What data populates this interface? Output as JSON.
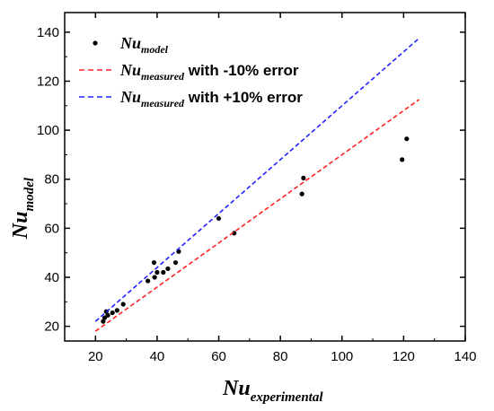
{
  "chart_data": {
    "type": "scatter",
    "xlabel": {
      "main": "Nu",
      "sub": "experimental"
    },
    "ylabel": {
      "main": "Nu",
      "sub": "model"
    },
    "xlim": [
      10,
      140
    ],
    "ylim": [
      14,
      148
    ],
    "xticks": [
      20,
      40,
      60,
      80,
      100,
      120,
      140
    ],
    "yticks": [
      20,
      40,
      60,
      80,
      100,
      120,
      140
    ],
    "grid": false,
    "legend_position": "top-left",
    "series": [
      {
        "kind": "points",
        "legend": {
          "main": "Nu",
          "sub": "model",
          "rest": ""
        },
        "color": "#000000",
        "x": [
          22.5,
          23.0,
          23.5,
          24.0,
          25.5,
          27.0,
          29.0,
          37.0,
          39.0,
          39.2,
          40.0,
          42.0,
          43.5,
          46.0,
          47.0,
          60.0,
          65.0,
          87.0,
          87.5,
          119.5,
          121.0
        ],
        "y": [
          22.0,
          23.5,
          26.0,
          24.5,
          25.5,
          26.5,
          29.0,
          38.5,
          46.0,
          40.0,
          42.0,
          42.0,
          43.5,
          46.0,
          50.5,
          64.0,
          58.0,
          74.0,
          80.5,
          88.0,
          96.5
        ]
      },
      {
        "kind": "line",
        "legend": {
          "main": "Nu",
          "sub": "measured",
          "rest": " with -10% error"
        },
        "color": "#ff2222",
        "x": [
          20,
          125
        ],
        "y": [
          18,
          112.5
        ]
      },
      {
        "kind": "line",
        "legend": {
          "main": "Nu",
          "sub": "measured",
          "rest": " with +10% error"
        },
        "color": "#2222ff",
        "x": [
          20,
          125
        ],
        "y": [
          22,
          137.5
        ]
      }
    ]
  }
}
